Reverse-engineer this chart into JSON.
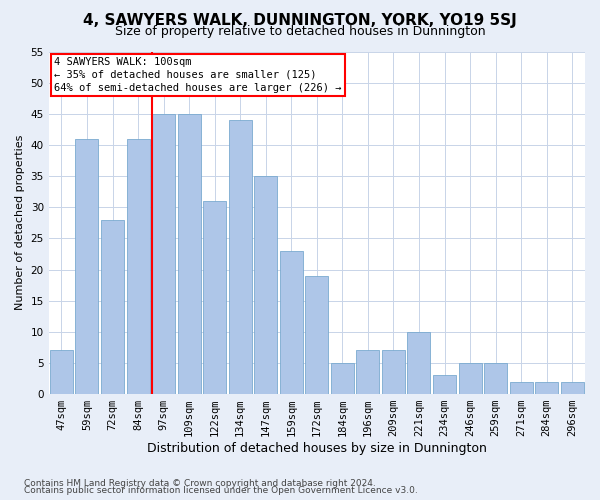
{
  "title": "4, SAWYERS WALK, DUNNINGTON, YORK, YO19 5SJ",
  "subtitle": "Size of property relative to detached houses in Dunnington",
  "xlabel": "Distribution of detached houses by size in Dunnington",
  "ylabel": "Number of detached properties",
  "categories": [
    "47sqm",
    "59sqm",
    "72sqm",
    "84sqm",
    "97sqm",
    "109sqm",
    "122sqm",
    "134sqm",
    "147sqm",
    "159sqm",
    "172sqm",
    "184sqm",
    "196sqm",
    "209sqm",
    "221sqm",
    "234sqm",
    "246sqm",
    "259sqm",
    "271sqm",
    "284sqm",
    "296sqm"
  ],
  "values": [
    7,
    41,
    28,
    41,
    45,
    45,
    31,
    44,
    35,
    23,
    19,
    5,
    7,
    7,
    10,
    3,
    5,
    5,
    2,
    2,
    2
  ],
  "bar_color": "#aec6e8",
  "bar_edge_color": "#7aaad0",
  "red_line_index": 4,
  "ylim": [
    0,
    55
  ],
  "yticks": [
    0,
    5,
    10,
    15,
    20,
    25,
    30,
    35,
    40,
    45,
    50,
    55
  ],
  "annotation_title": "4 SAWYERS WALK: 100sqm",
  "annotation_line1": "← 35% of detached houses are smaller (125)",
  "annotation_line2": "64% of semi-detached houses are larger (226) →",
  "footer1": "Contains HM Land Registry data © Crown copyright and database right 2024.",
  "footer2": "Contains public sector information licensed under the Open Government Licence v3.0.",
  "bg_color": "#e8eef8",
  "plot_bg_color": "#ffffff",
  "grid_color": "#c8d4e8",
  "title_fontsize": 11,
  "subtitle_fontsize": 9,
  "ylabel_fontsize": 8,
  "xlabel_fontsize": 9,
  "tick_fontsize": 7.5,
  "footer_fontsize": 6.5
}
